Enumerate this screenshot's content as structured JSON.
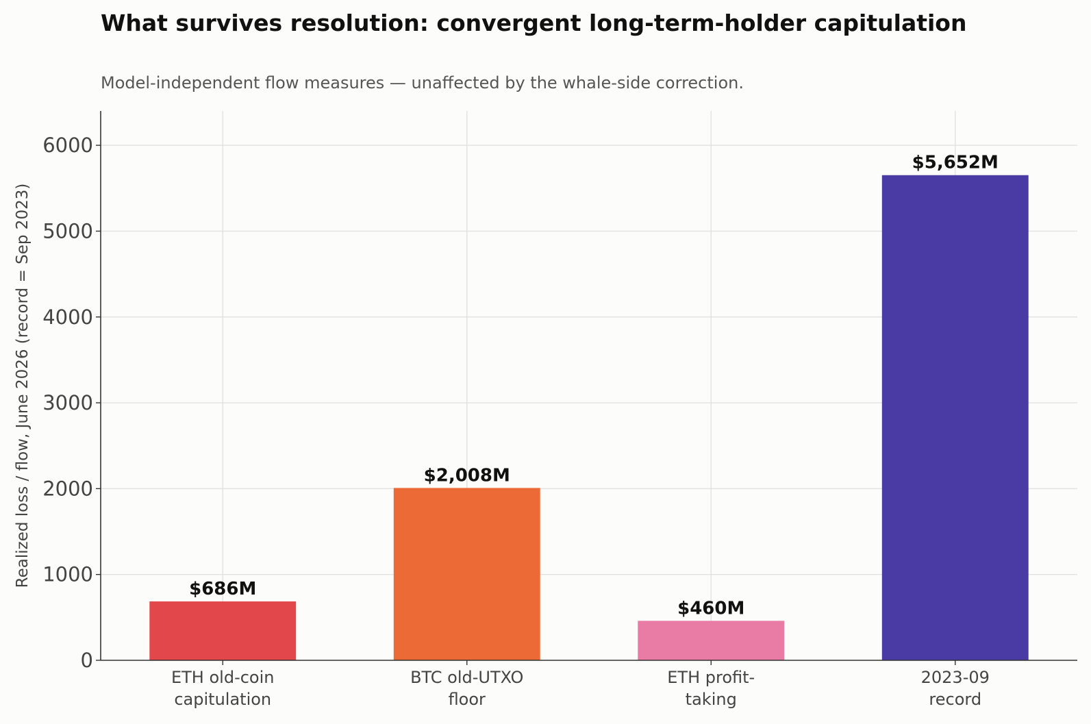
{
  "chart_data": {
    "type": "bar",
    "title": "What survives resolution: convergent long-term-holder capitulation",
    "subtitle": "Model-independent flow measures — unaffected by the whale-side correction.",
    "ylabel": "Realized loss / flow, June 2026 (record = Sep 2023)",
    "xlabel": "",
    "categories": [
      [
        "ETH old-coin",
        "capitulation"
      ],
      [
        "BTC old-UTXO",
        "floor"
      ],
      [
        "ETH profit-",
        "taking"
      ],
      [
        "2023-09",
        "record"
      ]
    ],
    "values": [
      686,
      2008,
      460,
      5652
    ],
    "value_labels": [
      "$686M",
      "$2,008M",
      "$460M",
      "$5,652M"
    ],
    "colors": [
      "#e2484b",
      "#eb6a36",
      "#e87ca5",
      "#4a3aa4"
    ],
    "ylim": [
      0,
      6400
    ],
    "yticks": [
      0,
      1000,
      2000,
      3000,
      4000,
      5000,
      6000
    ],
    "grid": true,
    "legend": "none"
  }
}
